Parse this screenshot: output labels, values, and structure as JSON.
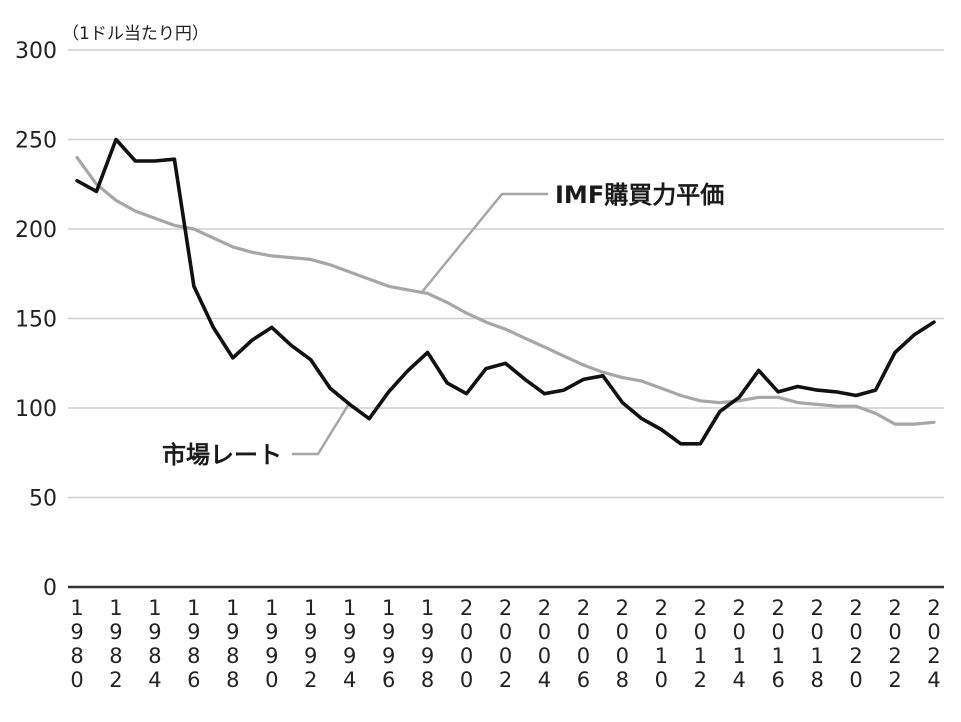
{
  "chart_data": {
    "type": "line",
    "ylabel": "（1ドル当たり円）",
    "ylim": [
      0,
      300
    ],
    "yticks": [
      0,
      50,
      100,
      150,
      200,
      250,
      300
    ],
    "grid": true,
    "x_tick_labels": [
      "1980",
      "1982",
      "1984",
      "1986",
      "1988",
      "1990",
      "1992",
      "1994",
      "1996",
      "1998",
      "2000",
      "2002",
      "2004",
      "2006",
      "2008",
      "2010",
      "2012",
      "2014",
      "2016",
      "2018",
      "2020",
      "2022",
      "2024"
    ],
    "x": [
      1980,
      1981,
      1982,
      1983,
      1984,
      1985,
      1986,
      1987,
      1988,
      1989,
      1990,
      1991,
      1992,
      1993,
      1994,
      1995,
      1996,
      1997,
      1998,
      1999,
      2000,
      2001,
      2002,
      2003,
      2004,
      2005,
      2006,
      2007,
      2008,
      2009,
      2010,
      2011,
      2012,
      2013,
      2014,
      2015,
      2016,
      2017,
      2018,
      2019,
      2020,
      2021,
      2022,
      2023,
      2024
    ],
    "series": [
      {
        "name": "市場レート",
        "color": "#111111",
        "values": [
          227,
          221,
          250,
          238,
          238,
          239,
          168,
          145,
          128,
          138,
          145,
          135,
          127,
          111,
          102,
          94,
          109,
          121,
          131,
          114,
          108,
          122,
          125,
          116,
          108,
          110,
          116,
          118,
          103,
          94,
          88,
          80,
          80,
          98,
          106,
          121,
          109,
          112,
          110,
          109,
          107,
          110,
          131,
          141,
          148
        ]
      },
      {
        "name": "IMF購買力平価",
        "color": "#a6a6a6",
        "values": [
          240,
          225,
          216,
          210,
          206,
          202,
          200,
          195,
          190,
          187,
          185,
          184,
          183,
          180,
          176,
          172,
          168,
          166,
          164,
          159,
          153,
          148,
          144,
          139,
          134,
          129,
          124,
          120,
          117,
          115,
          111,
          107,
          104,
          103,
          104,
          106,
          106,
          103,
          102,
          101,
          101,
          97,
          91,
          91,
          92
        ]
      }
    ]
  }
}
